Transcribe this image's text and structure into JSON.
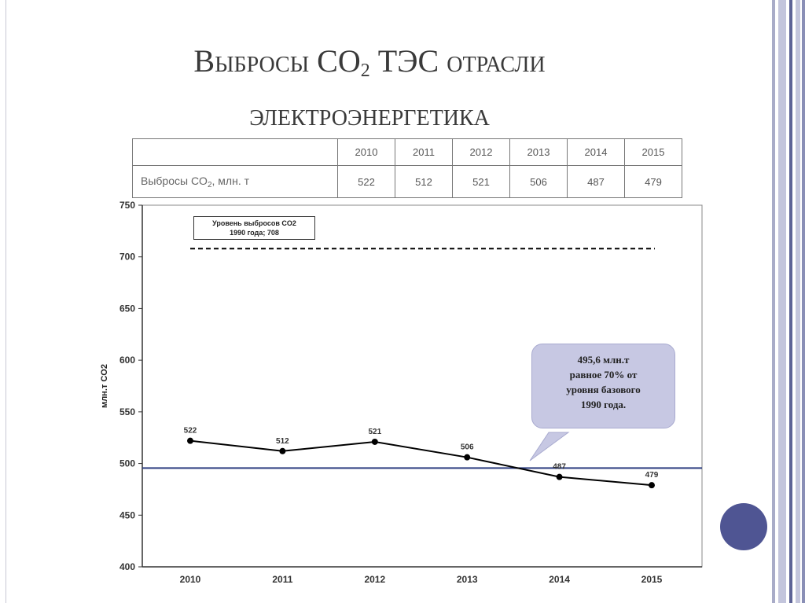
{
  "slide": {
    "title_prefix": "Выбросы CO",
    "title_sub": "2",
    "title_line1_suffix": " ТЭС отрасли",
    "title_line2": "электроэнергетика"
  },
  "table": {
    "row_label_prefix": "Выбросы CO",
    "row_label_sub": "2",
    "row_label_suffix": ", млн. т",
    "years": [
      "2010",
      "2011",
      "2012",
      "2013",
      "2014",
      "2015"
    ],
    "values": [
      "522",
      "512",
      "521",
      "506",
      "487",
      "479"
    ]
  },
  "legend": {
    "line1": "Уровень выбросов CO2",
    "line2": "1990 года; 708"
  },
  "callout": {
    "text_line1": "495,6 млн.т",
    "text_line2": "равное 70% от",
    "text_line3": "уровня базового",
    "text_line4": "1990 года."
  },
  "chart_data": {
    "type": "line",
    "categories": [
      "2010",
      "2011",
      "2012",
      "2013",
      "2014",
      "2015"
    ],
    "values": [
      522,
      512,
      521,
      506,
      487,
      479
    ],
    "data_labels": [
      "522",
      "512",
      "521",
      "506",
      "487",
      "479"
    ],
    "ylabel": "млн.т CO2",
    "ylim": [
      400,
      750
    ],
    "yticks": [
      400,
      450,
      500,
      550,
      600,
      650,
      700,
      750
    ],
    "reference_lines": [
      {
        "value": 708,
        "style": "dashed",
        "color": "#000000"
      },
      {
        "value": 495.6,
        "style": "solid",
        "color": "#2e3f80"
      }
    ],
    "grid": false,
    "line_color": "#000000"
  },
  "colors": {
    "bar1": "#8a8fb6",
    "bar2": "#c3c5dc",
    "bar3": "#5d6396",
    "circle": "#4f5593",
    "callout_fill": "#c7c8e3"
  }
}
